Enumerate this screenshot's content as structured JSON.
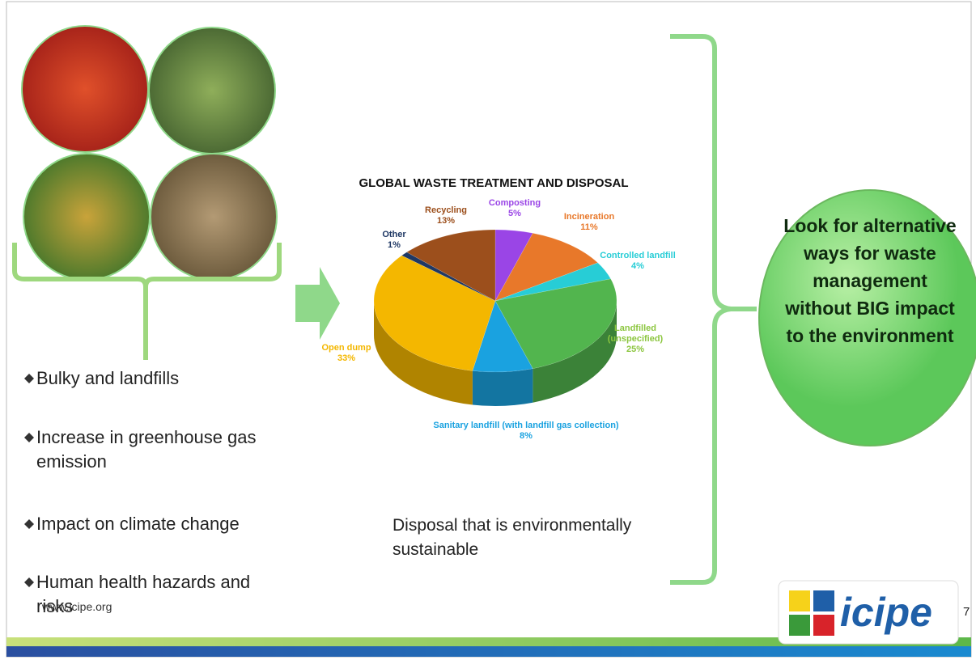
{
  "bullets": [
    "Bulky and landfills",
    "Increase in greenhouse gas emission",
    "Impact on climate change",
    "Human health hazards and risks"
  ],
  "caption": "Disposal that is environmentally sustainable",
  "callout": "Look for alternative ways for waste management without BIG impact to the environment",
  "footer": {
    "url": "www.icipe.org",
    "logo": "icipe",
    "page": "7"
  },
  "chart_data": {
    "type": "pie",
    "title": "GLOBAL WASTE TREATMENT AND DISPOSAL",
    "categories": [
      "Composting",
      "Incineration",
      "Controlled landfill",
      "Landfilled (unspecified)",
      "Sanitary landfill (with landfill gas collection)",
      "Open dump",
      "Other",
      "Recycling"
    ],
    "values": [
      5,
      11,
      4,
      25,
      8,
      33,
      1,
      13
    ],
    "value_labels": [
      "5%",
      "11%",
      "4%",
      "25%",
      "8%",
      "33%",
      "1%",
      "13%"
    ],
    "colors": [
      "#9a45e6",
      "#e8782a",
      "#27cdd6",
      "#52b54e",
      "#1aa2e0",
      "#f4b700",
      "#1f3864",
      "#9c4f1c"
    ]
  }
}
